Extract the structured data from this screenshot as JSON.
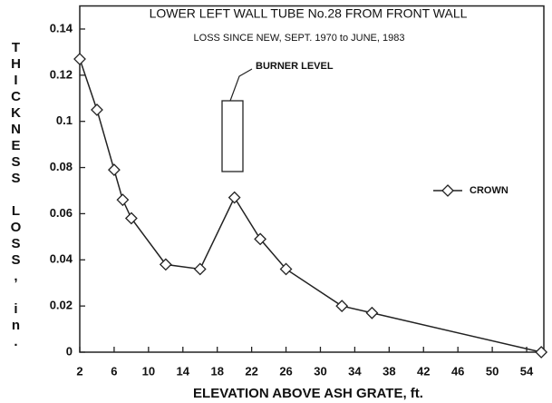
{
  "chart_data": {
    "type": "line",
    "title": "LOWER LEFT WALL TUBE No.28 FROM FRONT WALL",
    "subtitle": "LOSS SINCE NEW, SEPT. 1970 to JUNE, 1983",
    "x_label": "ELEVATION ABOVE ASH GRATE, ft.",
    "y_label": "THICKNESS LOSS, in.",
    "annotation": "BURNER LEVEL",
    "x": [
      2,
      4,
      6,
      7,
      8,
      12,
      16,
      20,
      23,
      26,
      32.5,
      36,
      55.7
    ],
    "series": [
      {
        "name": "CROWN",
        "color": "#222222",
        "values": [
          0.127,
          0.105,
          0.079,
          0.066,
          0.058,
          0.038,
          0.036,
          0.067,
          0.049,
          0.036,
          0.02,
          0.017,
          0
        ]
      }
    ],
    "xlim": [
      2,
      56
    ],
    "xticks": [
      2,
      6,
      10,
      14,
      18,
      22,
      26,
      30,
      34,
      38,
      42,
      46,
      50,
      54
    ],
    "ylim": [
      0,
      0.15
    ],
    "yticks": [
      0,
      0.02,
      0.04,
      0.06,
      0.08,
      0.1,
      0.12,
      0.14
    ],
    "legend": "right",
    "grid": false
  }
}
